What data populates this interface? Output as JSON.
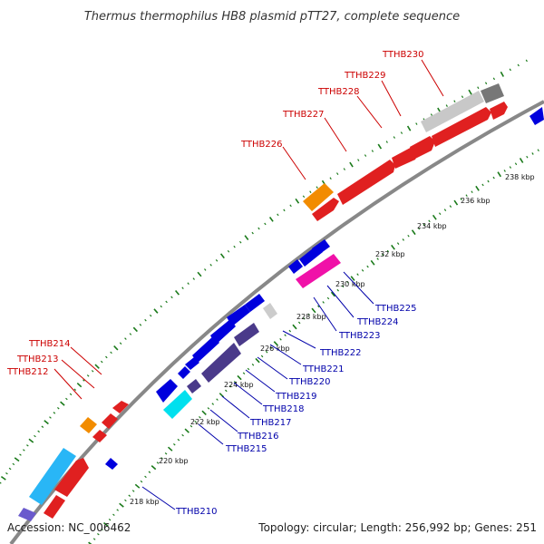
{
  "title": "Thermus thermophilus HB8 plasmid pTT27, complete sequence",
  "footer": {
    "accession": "Accession: NC_006462",
    "summary": "Topology: circular; Length: 256,992 bp; Genes: 251"
  },
  "colors": {
    "forward_label": "#cc0000",
    "reverse_label": "#0000aa",
    "ticks": "#1a7a1a",
    "backbone": "#888888"
  },
  "kbp_labels": [
    "218 kbp",
    "220 kbp",
    "222 kbp",
    "224 kbp",
    "226 kbp",
    "228 kbp",
    "230 kbp",
    "232 kbp",
    "234 kbp",
    "236 kbp",
    "238 kbp"
  ],
  "forward_genes": [
    "TTHB212",
    "TTHB213",
    "TTHB214",
    "TTHB226",
    "TTHB227",
    "TTHB228",
    "TTHB229",
    "TTHB230"
  ],
  "reverse_genes": [
    "TTHB210",
    "TTHB215",
    "TTHB216",
    "TTHB217",
    "TTHB218",
    "TTHB219",
    "TTHB220",
    "TTHB221",
    "TTHB222",
    "TTHB223",
    "TTHB224",
    "TTHB225"
  ]
}
